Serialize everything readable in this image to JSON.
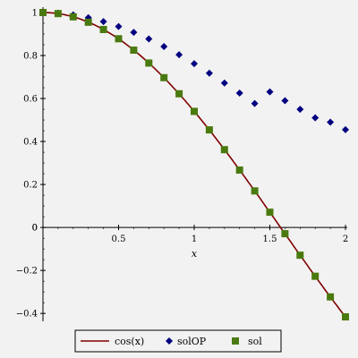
{
  "chart_data": {
    "type": "scatter",
    "xlabel": "x",
    "ylabel": "",
    "xlim": [
      0,
      2
    ],
    "ylim": [
      -0.42,
      1.0
    ],
    "x_ticks": [
      0.5,
      1,
      1.5,
      2
    ],
    "x_tick_labels": [
      "0.5",
      "1",
      "1.5",
      "2"
    ],
    "y_ticks": [
      1.0,
      0.8,
      0.6,
      0.4,
      0.2,
      0,
      -0.2,
      -0.4
    ],
    "y_tick_labels": [
      "1",
      "0.8",
      "0.6",
      "0.4",
      "0.2",
      "0",
      "−0.2",
      "−0.4"
    ],
    "grid": false,
    "legend_position": "bottom",
    "series": [
      {
        "name": "cos(x)",
        "kind": "line",
        "color": "#800000",
        "function": "cos(x)",
        "x_range": [
          0,
          2
        ]
      },
      {
        "name": "solOP",
        "kind": "markers",
        "marker": "diamond",
        "color": "#000080",
        "x": [
          0,
          0.1,
          0.2,
          0.3,
          0.4,
          0.5,
          0.6,
          0.7,
          0.8,
          0.9,
          1.0,
          1.1,
          1.2,
          1.3,
          1.4,
          1.5,
          1.6,
          1.7,
          1.8,
          1.9,
          2.0
        ],
        "y": [
          1.0,
          0.997,
          0.989,
          0.976,
          0.958,
          0.935,
          0.908,
          0.877,
          0.842,
          0.804,
          0.762,
          0.718,
          0.672,
          0.625,
          0.577,
          0.631,
          0.59,
          0.55,
          0.51,
          0.49,
          0.455
        ]
      },
      {
        "name": "sol",
        "kind": "markers",
        "marker": "square",
        "color": "#4a7a0f",
        "x": [
          0,
          0.1,
          0.2,
          0.3,
          0.4,
          0.5,
          0.6,
          0.7,
          0.8,
          0.9,
          1.0,
          1.1,
          1.2,
          1.3,
          1.4,
          1.5,
          1.6,
          1.7,
          1.8,
          1.9,
          2.0
        ],
        "y": [
          1.0,
          0.995,
          0.98,
          0.955,
          0.921,
          0.878,
          0.825,
          0.765,
          0.697,
          0.622,
          0.54,
          0.454,
          0.362,
          0.267,
          0.17,
          0.071,
          -0.029,
          -0.129,
          -0.227,
          -0.323,
          -0.416
        ]
      }
    ]
  }
}
